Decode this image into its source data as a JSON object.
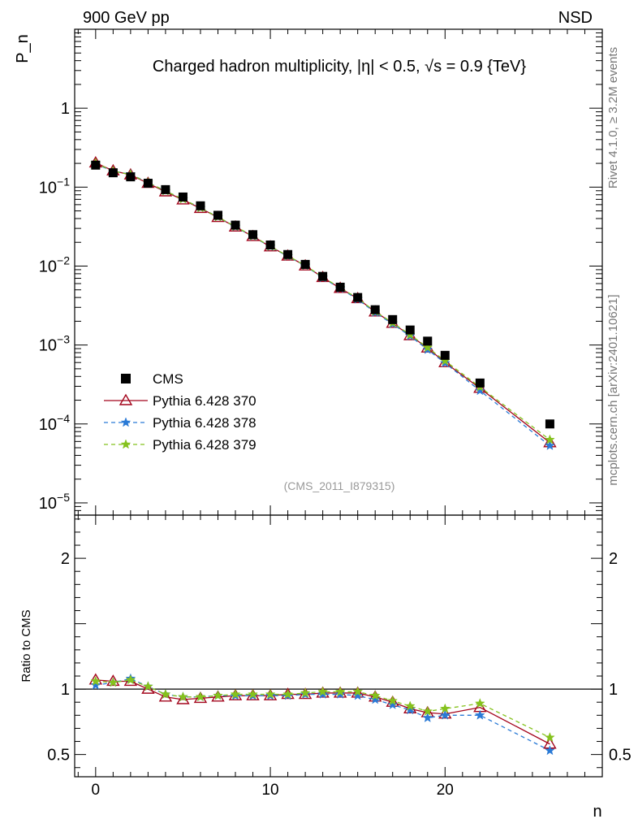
{
  "header": {
    "left": "900 GeV pp",
    "right": "NSD"
  },
  "side_labels": {
    "rivet": "Rivet 4.1.0, ≥ 3.2M events",
    "mcplots": "mcplots.cern.ch [arXiv:2401.10621]"
  },
  "chart_data": {
    "type": "scatter",
    "title": "Charged hadron multiplicity, |η| < 0.5, √s = 0.9 {TeV}",
    "analysis_tag": "(CMS_2011_I879315)",
    "xlabel": "n",
    "ylabel": "P_n",
    "ratio_ylabel": "Ratio to CMS",
    "xlim": [
      -1.2,
      29
    ],
    "ylim": [
      7e-06,
      10
    ],
    "yscale": "log",
    "ratio_ylim": [
      0.33,
      2.33
    ],
    "x_ticks": [
      "0",
      "10",
      "20"
    ],
    "y_ticks": [
      {
        "base": "10",
        "exp": "−5",
        "value": 1e-05
      },
      {
        "base": "10",
        "exp": "−4",
        "value": 0.0001
      },
      {
        "base": "10",
        "exp": "−3",
        "value": 0.001
      },
      {
        "base": "10",
        "exp": "−2",
        "value": 0.01
      },
      {
        "base": "10",
        "exp": "−1",
        "value": 0.1
      },
      {
        "base": "1",
        "exp": "",
        "value": 1
      }
    ],
    "ratio_ticks": [
      {
        "label": "0.5",
        "value": 0.5
      },
      {
        "label": "1",
        "value": 1
      },
      {
        "label": "2",
        "value": 2
      }
    ],
    "x": [
      0,
      1,
      2,
      3,
      4,
      5,
      6,
      7,
      8,
      9,
      10,
      11,
      12,
      13,
      14,
      15,
      16,
      17,
      18,
      19,
      20,
      22,
      26
    ],
    "cms": [
      0.19,
      0.152,
      0.135,
      0.112,
      0.093,
      0.075,
      0.058,
      0.044,
      0.033,
      0.025,
      0.0185,
      0.014,
      0.0105,
      0.0074,
      0.0054,
      0.004,
      0.0028,
      0.0021,
      0.00155,
      0.00112,
      0.00074,
      0.00033,
      0.0001
    ],
    "series": [
      {
        "name": "Pythia 6.428 370",
        "color": "#a3051c",
        "marker": "triangle",
        "dash": "solid",
        "ratio": [
          1.07,
          1.06,
          1.06,
          1.0,
          0.94,
          0.92,
          0.93,
          0.94,
          0.95,
          0.95,
          0.95,
          0.96,
          0.96,
          0.97,
          0.97,
          0.97,
          0.94,
          0.9,
          0.85,
          0.82,
          0.81,
          0.86,
          0.58
        ]
      },
      {
        "name": "Pythia 6.428 378",
        "color": "#2a7ad6",
        "marker": "star",
        "dash": "dashed",
        "ratio": [
          1.03,
          1.05,
          1.08,
          1.02,
          0.96,
          0.94,
          0.94,
          0.95,
          0.95,
          0.95,
          0.95,
          0.95,
          0.96,
          0.96,
          0.96,
          0.95,
          0.92,
          0.88,
          0.84,
          0.78,
          0.8,
          0.8,
          0.53
        ]
      },
      {
        "name": "Pythia 6.428 379",
        "color": "#85c21d",
        "marker": "star",
        "dash": "dashed",
        "ratio": [
          1.06,
          1.05,
          1.07,
          1.02,
          0.96,
          0.94,
          0.94,
          0.95,
          0.96,
          0.96,
          0.96,
          0.96,
          0.97,
          0.98,
          0.98,
          0.98,
          0.95,
          0.91,
          0.87,
          0.83,
          0.85,
          0.89,
          0.63
        ]
      }
    ],
    "legend": {
      "placement": "lower-left",
      "data_label": "CMS"
    }
  }
}
